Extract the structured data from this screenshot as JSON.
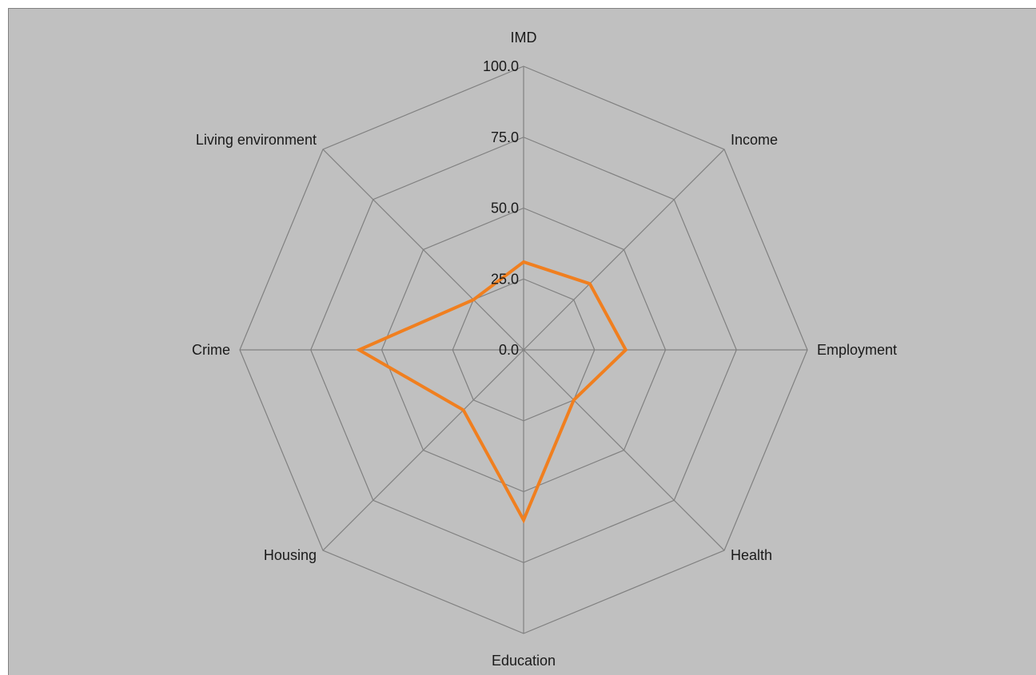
{
  "chart_data": {
    "type": "radar",
    "title": "",
    "categories": [
      "IMD",
      "Income",
      "Employment",
      "Health",
      "Education",
      "Housing",
      "Crime",
      "Living environment"
    ],
    "ticks": [
      "0.0",
      "25.0",
      "50.0",
      "75.0",
      "100.0"
    ],
    "rlim": [
      0,
      100
    ],
    "grid": true,
    "legend": "none",
    "series": [
      {
        "values": [
          31,
          33,
          36,
          25,
          60,
          30,
          58,
          25
        ],
        "color": "#f07f1f"
      }
    ]
  },
  "colors": {
    "background": "#c0c0c0",
    "grid": "#808080",
    "series": "#f07f1f"
  }
}
